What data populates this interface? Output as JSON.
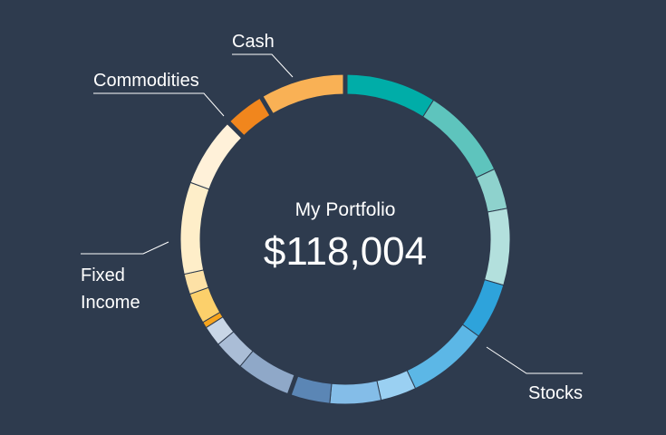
{
  "chart_data": {
    "type": "pie",
    "style": "donut",
    "title": "My Portfolio",
    "total_label": "$118,004",
    "legend": "none",
    "grid": false,
    "categories": [
      {
        "name": "Stocks",
        "share": 0.555,
        "segments": [
          {
            "value": 0.09,
            "color": "#00ada8"
          },
          {
            "value": 0.09,
            "color": "#5ec4bd"
          },
          {
            "value": 0.04,
            "color": "#8ed2cd"
          },
          {
            "value": 0.075,
            "color": "#b3e0dd"
          },
          {
            "value": 0.055,
            "color": "#2ea3db"
          },
          {
            "value": 0.08,
            "color": "#5cb7e6"
          },
          {
            "value": 0.035,
            "color": "#9ad0f2"
          },
          {
            "value": 0.05,
            "color": "#84bde8"
          },
          {
            "value": 0.04,
            "color": "#5b86b5"
          }
        ]
      },
      {
        "name": "Fixed Income",
        "share": 0.32,
        "segments": [
          {
            "value": 0.055,
            "color": "#8fa8c8"
          },
          {
            "value": 0.03,
            "color": "#aabdd6"
          },
          {
            "value": 0.02,
            "color": "#c8d6e6"
          },
          {
            "value": 0.006,
            "color": "#f7a41d"
          },
          {
            "value": 0.03,
            "color": "#fcd06b"
          },
          {
            "value": 0.02,
            "color": "#fde1a6"
          },
          {
            "value": 0.09,
            "color": "#feeec9"
          },
          {
            "value": 0.069,
            "color": "#fff1d9"
          }
        ]
      },
      {
        "name": "Commodities",
        "share": 0.04,
        "segments": [
          {
            "value": 0.04,
            "color": "#f1861d"
          }
        ]
      },
      {
        "name": "Cash",
        "share": 0.085,
        "segments": [
          {
            "value": 0.085,
            "color": "#f9b155"
          }
        ]
      }
    ]
  }
}
